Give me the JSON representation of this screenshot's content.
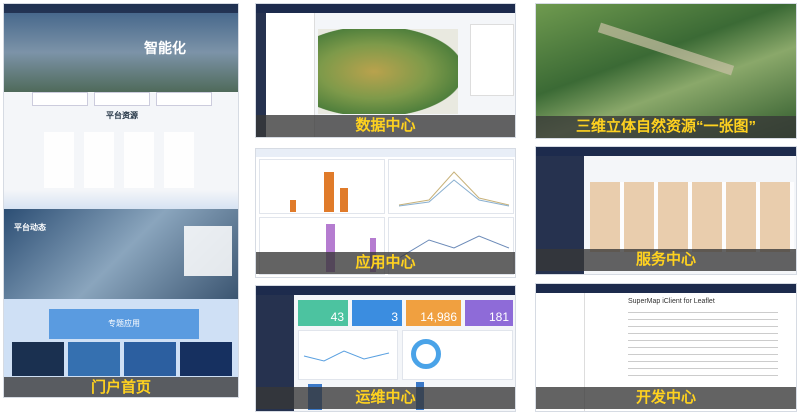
{
  "panels": [
    {
      "caption": "门户首页",
      "labels": [
        "智能化",
        "平台资源",
        "平台动态",
        "专题应用"
      ]
    },
    {
      "caption": "数据中心"
    },
    {
      "caption": "三维立体自然资源“一张图”"
    },
    {
      "caption": "应用中心"
    },
    {
      "caption": "服务中心"
    },
    {
      "caption": "运维中心",
      "labels": [
        "43",
        "3",
        "14,986",
        "181"
      ]
    },
    {
      "caption": "开发中心",
      "labels": [
        "SuperMap iClient for Leaflet"
      ]
    }
  ]
}
